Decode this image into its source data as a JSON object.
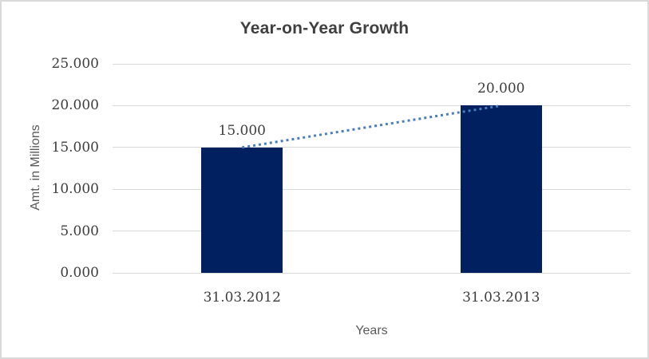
{
  "chart_data": {
    "type": "bar",
    "title": "Year-on-Year Growth",
    "xlabel": "Years",
    "ylabel": "Amt. in Millions",
    "categories": [
      "31.03.2012",
      "31.03.2013"
    ],
    "values": [
      15,
      20
    ],
    "data_labels": [
      "15.000",
      "20.000"
    ],
    "ylim": [
      0,
      25
    ],
    "yticks": [
      {
        "value": 25,
        "label": "25.000"
      },
      {
        "value": 20,
        "label": "20.000"
      },
      {
        "value": 15,
        "label": "15.000"
      },
      {
        "value": 10,
        "label": "10.000"
      },
      {
        "value": 5,
        "label": "5.000"
      },
      {
        "value": 0,
        "label": "0.000"
      }
    ],
    "grid": true,
    "legend": "none",
    "colors": {
      "bar": "#002060",
      "trendline": "#4a7ebb",
      "gridline": "#d9d9d9",
      "title_text": "#3f3f3f",
      "tick_text": "#3d3d3d",
      "axis_title_text": "#595959",
      "frame": "#d9d9d9",
      "background": "#ffffff"
    },
    "trendline_style": "dotted"
  }
}
